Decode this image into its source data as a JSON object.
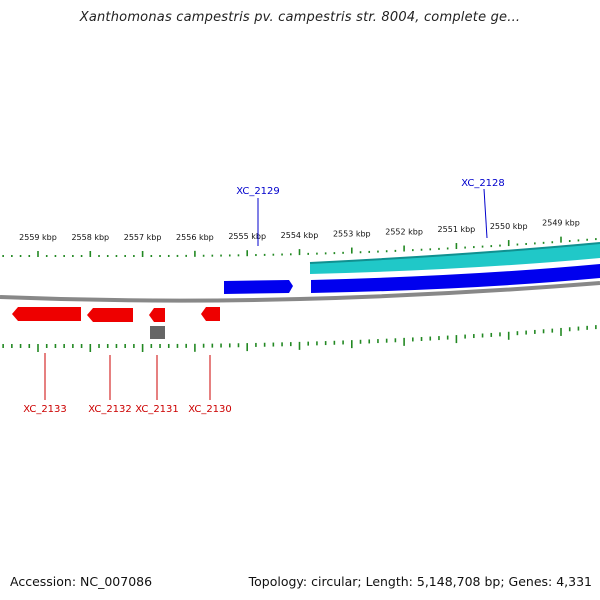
{
  "title": "Xanthomonas campestris pv. campestris str. 8004, complete ge...",
  "footer": {
    "accession": "Accession: NC_007086",
    "summary": "Topology: circular; Length: 5,148,708 bp; Genes: 4,331"
  },
  "colors": {
    "forward_gene": "#0000ee",
    "reverse_gene": "#ee0000",
    "band_cds": "#20c8c8",
    "other_feature": "#666666",
    "backbone": "#888888",
    "ticks": "#228822"
  },
  "scale_labels": [
    "2559 kbp",
    "2558 kbp",
    "2557 kbp",
    "2556 kbp",
    "2555 kbp",
    "2554 kbp",
    "2553 kbp",
    "2552 kbp",
    "2551 kbp",
    "2550 kbp",
    "2549 kbp"
  ],
  "genes_forward": [
    {
      "label": "XC_2129"
    },
    {
      "label": "XC_2128"
    }
  ],
  "genes_reverse": [
    {
      "label": "XC_2133"
    },
    {
      "label": "XC_2132"
    },
    {
      "label": "XC_2131"
    },
    {
      "label": "XC_2130"
    }
  ]
}
